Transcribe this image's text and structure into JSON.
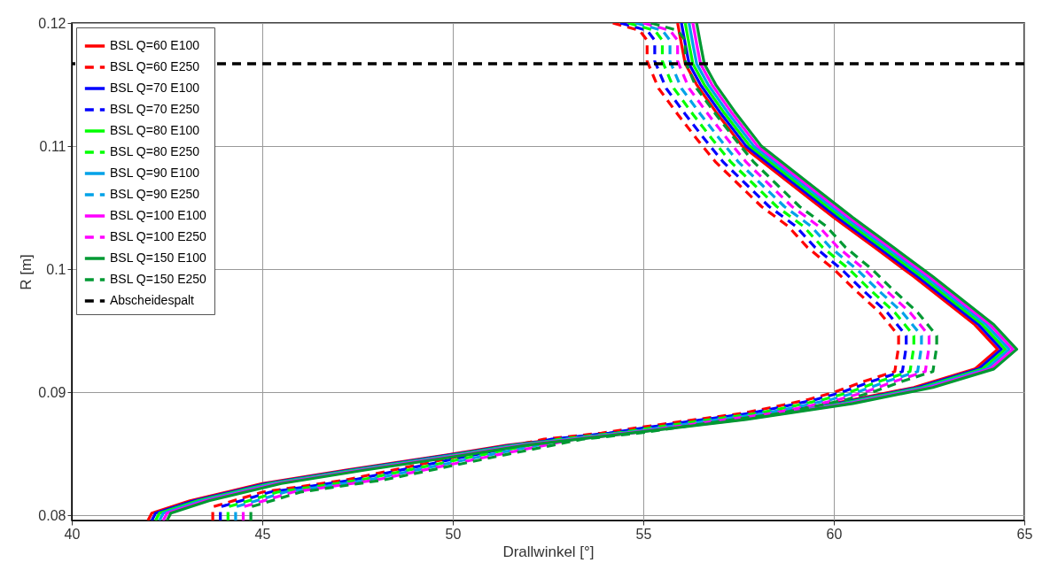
{
  "chart_data": {
    "type": "line",
    "xlabel": "Drallwinkel [°]",
    "ylabel": "R [m]",
    "xlim": [
      40,
      65
    ],
    "xticks": [
      40,
      45,
      50,
      55,
      60,
      65
    ],
    "ylim": [
      0.0796,
      0.12
    ],
    "yticks": [
      0.08,
      0.09,
      0.1,
      0.11,
      0.12
    ],
    "grid": true,
    "legend": "top left",
    "series": [
      {
        "name": "BSL Q=60 E100",
        "color": "#ff0000",
        "line_style": "solid",
        "x": [
          55.9,
          56.0,
          56.1,
          56.4,
          56.9,
          57.6,
          58.8,
          60.0,
          61.1,
          62.1,
          63.7,
          64.3,
          63.7,
          62.1,
          60.0,
          57.2,
          53.9,
          51.4,
          50.0,
          47.2,
          45.0,
          43.1,
          42.1,
          42.0
        ],
        "values": [
          0.12,
          0.1183,
          0.1167,
          0.115,
          0.1128,
          0.11,
          0.1071,
          0.1042,
          0.1017,
          0.0994,
          0.0955,
          0.0935,
          0.0919,
          0.0904,
          0.0891,
          0.0878,
          0.0866,
          0.0857,
          0.085,
          0.0837,
          0.0826,
          0.0812,
          0.0802,
          0.0796
        ]
      },
      {
        "name": "BSL Q=60 E250",
        "color": "#ff0000",
        "line_style": "dashed",
        "x": [
          54.2,
          54.9,
          55.1,
          55.1,
          55.4,
          55.9,
          56.4,
          56.9,
          57.5,
          58.1,
          58.8,
          59.3,
          60.0,
          60.6,
          61.2,
          61.7,
          61.7,
          61.6,
          60.8,
          60.0,
          59.3,
          58.4,
          57.6,
          55.9,
          53.9,
          52.4,
          50.0,
          47.2,
          45.0,
          43.7,
          43.7
        ],
        "values": [
          0.12,
          0.1194,
          0.1186,
          0.1169,
          0.1147,
          0.1126,
          0.1106,
          0.1087,
          0.1069,
          0.1051,
          0.1035,
          0.1018,
          0.1,
          0.0982,
          0.0965,
          0.0946,
          0.0937,
          0.0917,
          0.0909,
          0.09,
          0.0894,
          0.0888,
          0.0883,
          0.0876,
          0.0867,
          0.0862,
          0.0847,
          0.0829,
          0.0819,
          0.0807,
          0.0796
        ]
      },
      {
        "name": "BSL Q=70 E100",
        "color": "#0000ff",
        "line_style": "solid",
        "x": [
          56.0,
          56.1,
          56.2,
          56.5,
          57.0,
          57.7,
          58.9,
          60.1,
          61.2,
          62.2,
          63.8,
          64.4,
          63.8,
          62.2,
          60.1,
          57.3,
          54.0,
          51.5,
          50.1,
          47.3,
          45.1,
          43.2,
          42.2,
          42.1
        ],
        "values": [
          0.12,
          0.1183,
          0.1167,
          0.115,
          0.1128,
          0.11,
          0.1071,
          0.1042,
          0.1017,
          0.0994,
          0.0955,
          0.0935,
          0.0919,
          0.0904,
          0.0891,
          0.0878,
          0.0866,
          0.0857,
          0.085,
          0.0837,
          0.0826,
          0.0812,
          0.0802,
          0.0796
        ]
      },
      {
        "name": "BSL Q=70 E250",
        "color": "#0000ff",
        "line_style": "dashed",
        "x": [
          54.4,
          55.1,
          55.3,
          55.3,
          55.6,
          56.1,
          56.6,
          57.1,
          57.7,
          58.3,
          59.0,
          59.5,
          60.2,
          60.8,
          61.4,
          61.9,
          61.9,
          61.8,
          61.0,
          60.2,
          59.5,
          58.6,
          57.8,
          56.1,
          54.1,
          52.6,
          50.2,
          47.4,
          45.2,
          43.9,
          43.9
        ],
        "values": [
          0.12,
          0.1194,
          0.1186,
          0.1169,
          0.1147,
          0.1126,
          0.1106,
          0.1087,
          0.1069,
          0.1051,
          0.1035,
          0.1018,
          0.1,
          0.0982,
          0.0965,
          0.0946,
          0.0937,
          0.0917,
          0.0909,
          0.09,
          0.0894,
          0.0888,
          0.0883,
          0.0876,
          0.0867,
          0.0862,
          0.0847,
          0.0829,
          0.0819,
          0.0807,
          0.0796
        ]
      },
      {
        "name": "BSL Q=80 E100",
        "color": "#00ff00",
        "line_style": "solid",
        "x": [
          56.1,
          56.2,
          56.3,
          56.6,
          57.1,
          57.8,
          59.0,
          60.2,
          61.3,
          62.3,
          63.9,
          64.5,
          63.9,
          62.3,
          60.2,
          57.4,
          54.1,
          51.6,
          50.2,
          47.4,
          45.2,
          43.3,
          42.3,
          42.2
        ],
        "values": [
          0.12,
          0.1183,
          0.1167,
          0.115,
          0.1128,
          0.11,
          0.1071,
          0.1042,
          0.1017,
          0.0994,
          0.0955,
          0.0935,
          0.0919,
          0.0904,
          0.0891,
          0.0878,
          0.0866,
          0.0857,
          0.085,
          0.0837,
          0.0826,
          0.0812,
          0.0802,
          0.0796
        ]
      },
      {
        "name": "BSL Q=80 E250",
        "color": "#00ff00",
        "line_style": "dashed",
        "x": [
          54.6,
          55.3,
          55.5,
          55.5,
          55.8,
          56.3,
          56.8,
          57.3,
          57.9,
          58.5,
          59.2,
          59.7,
          60.4,
          61.0,
          61.6,
          62.1,
          62.1,
          62.0,
          61.2,
          60.4,
          59.7,
          58.8,
          58.0,
          56.3,
          54.3,
          52.8,
          50.4,
          47.6,
          45.4,
          44.1,
          44.1
        ],
        "values": [
          0.12,
          0.1194,
          0.1186,
          0.1169,
          0.1147,
          0.1126,
          0.1106,
          0.1087,
          0.1069,
          0.1051,
          0.1035,
          0.1018,
          0.1,
          0.0982,
          0.0965,
          0.0946,
          0.0937,
          0.0917,
          0.0909,
          0.09,
          0.0894,
          0.0888,
          0.0883,
          0.0876,
          0.0867,
          0.0862,
          0.0847,
          0.0829,
          0.0819,
          0.0807,
          0.0796
        ]
      },
      {
        "name": "BSL Q=90 E100",
        "color": "#00a2e8",
        "line_style": "solid",
        "x": [
          56.2,
          56.3,
          56.4,
          56.7,
          57.2,
          57.9,
          59.1,
          60.3,
          61.4,
          62.4,
          64.0,
          64.6,
          64.0,
          62.4,
          60.3,
          57.5,
          54.2,
          51.7,
          50.3,
          47.5,
          45.3,
          43.4,
          42.4,
          42.3
        ],
        "values": [
          0.12,
          0.1183,
          0.1167,
          0.115,
          0.1128,
          0.11,
          0.1071,
          0.1042,
          0.1017,
          0.0994,
          0.0955,
          0.0935,
          0.0919,
          0.0904,
          0.0891,
          0.0878,
          0.0866,
          0.0857,
          0.085,
          0.0837,
          0.0826,
          0.0812,
          0.0802,
          0.0796
        ]
      },
      {
        "name": "BSL Q=90 E250",
        "color": "#00a2e8",
        "line_style": "dashed",
        "x": [
          54.8,
          55.5,
          55.7,
          55.7,
          56.0,
          56.5,
          57.0,
          57.5,
          58.1,
          58.7,
          59.4,
          59.9,
          60.6,
          61.2,
          61.8,
          62.3,
          62.3,
          62.2,
          61.4,
          60.6,
          59.9,
          59.0,
          58.2,
          56.5,
          54.5,
          53.0,
          50.6,
          47.8,
          45.6,
          44.3,
          44.3
        ],
        "values": [
          0.12,
          0.1194,
          0.1186,
          0.1169,
          0.1147,
          0.1126,
          0.1106,
          0.1087,
          0.1069,
          0.1051,
          0.1035,
          0.1018,
          0.1,
          0.0982,
          0.0965,
          0.0946,
          0.0937,
          0.0917,
          0.0909,
          0.09,
          0.0894,
          0.0888,
          0.0883,
          0.0876,
          0.0867,
          0.0862,
          0.0847,
          0.0829,
          0.0819,
          0.0807,
          0.0796
        ]
      },
      {
        "name": "BSL Q=100 E100",
        "color": "#ff00ff",
        "line_style": "solid",
        "x": [
          56.3,
          56.4,
          56.5,
          56.8,
          57.3,
          58.0,
          59.2,
          60.4,
          61.5,
          62.5,
          64.1,
          64.7,
          64.1,
          62.5,
          60.4,
          57.6,
          54.3,
          51.8,
          50.4,
          47.6,
          45.4,
          43.5,
          42.5,
          42.4
        ],
        "values": [
          0.12,
          0.1183,
          0.1167,
          0.115,
          0.1128,
          0.11,
          0.1071,
          0.1042,
          0.1017,
          0.0994,
          0.0955,
          0.0935,
          0.0919,
          0.0904,
          0.0891,
          0.0878,
          0.0866,
          0.0857,
          0.085,
          0.0837,
          0.0826,
          0.0812,
          0.0802,
          0.0796
        ]
      },
      {
        "name": "BSL Q=100 E250",
        "color": "#ff00ff",
        "line_style": "dashed",
        "x": [
          55.0,
          55.7,
          55.9,
          55.9,
          56.2,
          56.7,
          57.2,
          57.7,
          58.3,
          58.9,
          59.6,
          60.1,
          60.8,
          61.4,
          62.0,
          62.5,
          62.5,
          62.4,
          61.6,
          60.8,
          60.1,
          59.2,
          58.4,
          56.7,
          54.7,
          53.2,
          50.8,
          48.0,
          45.8,
          44.5,
          44.5
        ],
        "values": [
          0.12,
          0.1194,
          0.1186,
          0.1169,
          0.1147,
          0.1126,
          0.1106,
          0.1087,
          0.1069,
          0.1051,
          0.1035,
          0.1018,
          0.1,
          0.0982,
          0.0965,
          0.0946,
          0.0937,
          0.0917,
          0.0909,
          0.09,
          0.0894,
          0.0888,
          0.0883,
          0.0876,
          0.0867,
          0.0862,
          0.0847,
          0.0829,
          0.0819,
          0.0807,
          0.0796
        ]
      },
      {
        "name": "BSL Q=150 E100",
        "color": "#009933",
        "line_style": "solid",
        "x": [
          56.4,
          56.5,
          56.6,
          56.9,
          57.4,
          58.1,
          59.3,
          60.5,
          61.6,
          62.6,
          64.2,
          64.8,
          64.2,
          62.6,
          60.5,
          57.7,
          54.4,
          51.9,
          50.5,
          47.7,
          45.5,
          43.6,
          42.6,
          42.5
        ],
        "values": [
          0.12,
          0.1183,
          0.1167,
          0.115,
          0.1128,
          0.11,
          0.1071,
          0.1042,
          0.1017,
          0.0994,
          0.0955,
          0.0935,
          0.0919,
          0.0904,
          0.0891,
          0.0878,
          0.0866,
          0.0857,
          0.085,
          0.0837,
          0.0826,
          0.0812,
          0.0802,
          0.0796
        ]
      },
      {
        "name": "BSL Q=150 E250",
        "color": "#009933",
        "line_style": "dashed",
        "x": [
          55.2,
          55.9,
          56.1,
          56.1,
          56.4,
          56.9,
          57.4,
          57.9,
          58.5,
          59.1,
          59.8,
          60.3,
          61.0,
          61.6,
          62.2,
          62.7,
          62.7,
          62.6,
          61.8,
          61.0,
          60.3,
          59.4,
          58.6,
          56.9,
          54.9,
          53.4,
          51.0,
          48.2,
          46.0,
          44.7,
          44.7
        ],
        "values": [
          0.12,
          0.1194,
          0.1186,
          0.1169,
          0.1147,
          0.1126,
          0.1106,
          0.1087,
          0.1069,
          0.1051,
          0.1035,
          0.1018,
          0.1,
          0.0982,
          0.0965,
          0.0946,
          0.0937,
          0.0917,
          0.0909,
          0.09,
          0.0894,
          0.0888,
          0.0883,
          0.0876,
          0.0867,
          0.0862,
          0.0847,
          0.0829,
          0.0819,
          0.0807,
          0.0796
        ]
      }
    ],
    "ref_lines": [
      {
        "axis": "y",
        "value": 0.1167,
        "label": "Abscheidespalt",
        "color": "#000000",
        "line_style": "dashed"
      }
    ]
  }
}
